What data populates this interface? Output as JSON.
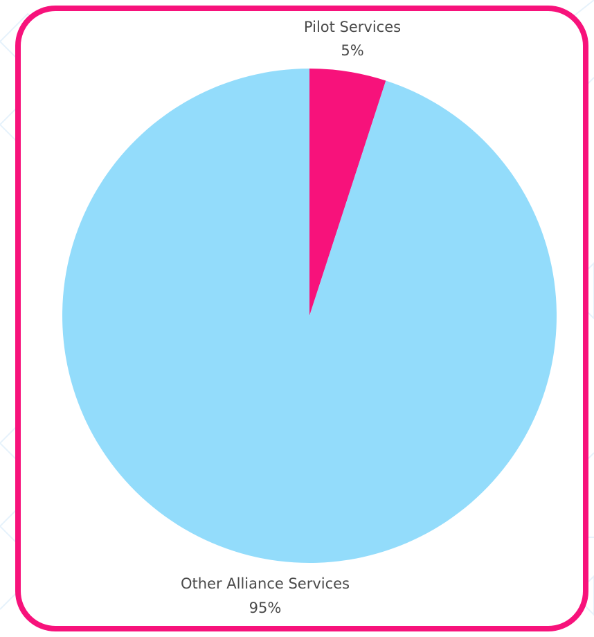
{
  "chart_data": {
    "type": "pie",
    "title": "",
    "slices": [
      {
        "label": "Pilot Services",
        "value": 5,
        "value_label": "5%",
        "color": "#f7127b"
      },
      {
        "label": "Other Alliance Services",
        "value": 95,
        "value_label": "95%",
        "color": "#93dcfb"
      }
    ]
  },
  "colors": {
    "frame_border": "#f7127b",
    "background_pattern": "#e6f2fb",
    "label_text": "#4a4a4a"
  }
}
